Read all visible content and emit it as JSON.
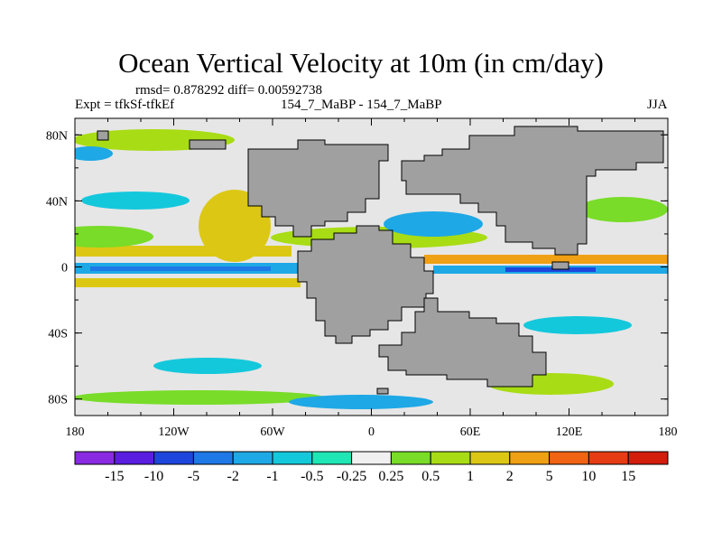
{
  "header": {
    "title": "Ocean Vertical Velocity at 10m (in cm/day)",
    "stats": "rmsd= 0.878292  diff= 0.00592738",
    "expt": "Expt = tfkSf-tfkEf",
    "center_label": "154_7_MaBP - 154_7_MaBP",
    "season": "JJA"
  },
  "map": {
    "x_ticks": [
      "180",
      "120W",
      "60W",
      "0",
      "60E",
      "120E",
      "180"
    ],
    "y_ticks": [
      "80N",
      "40N",
      "0",
      "40S",
      "80S"
    ],
    "land_color": "#a0a0a0",
    "ocean_neutral_color": "#e6e6e6"
  },
  "colorbar": {
    "labels": [
      "-15",
      "-10",
      "-5",
      "-2",
      "-1",
      "-0.5",
      "-0.25",
      "0.25",
      "0.5",
      "1",
      "2",
      "5",
      "10",
      "15"
    ],
    "colors": [
      "#8a2be2",
      "#5a1ee0",
      "#1e46dc",
      "#1e78e6",
      "#1ea8e6",
      "#14c8dc",
      "#1ee6b4",
      "#f0f0f0",
      "#78dc28",
      "#a8dc14",
      "#dcc814",
      "#f0a014",
      "#f06414",
      "#e63c14",
      "#d21e0a"
    ]
  }
}
